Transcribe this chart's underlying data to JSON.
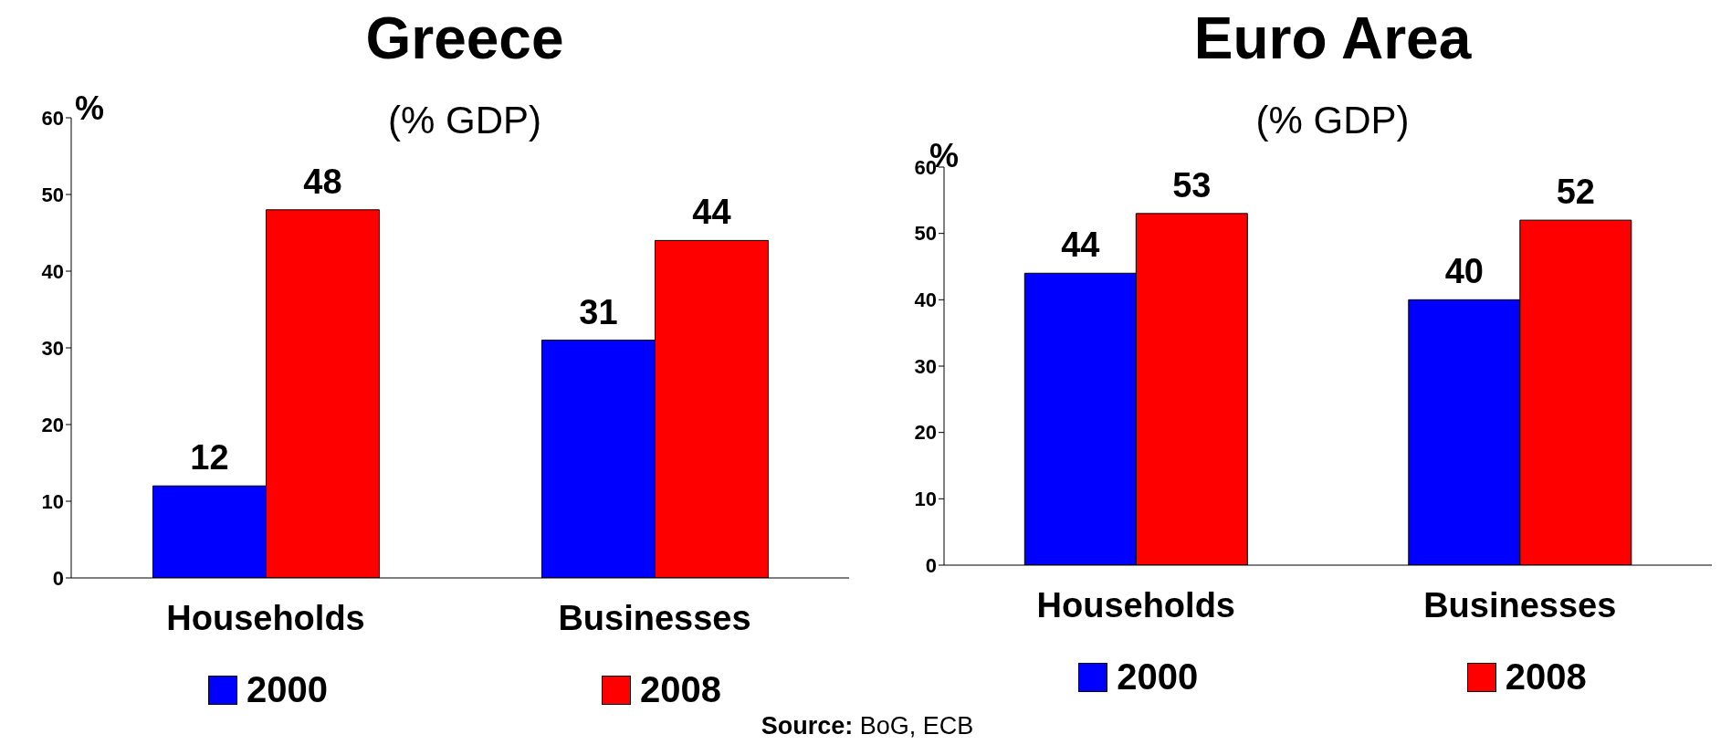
{
  "chart_data": [
    {
      "type": "bar",
      "title": "Greece",
      "subtitle": "(% GDP)",
      "ylabel": "%",
      "categories": [
        "Households",
        "Businesses"
      ],
      "series": [
        {
          "name": "2000",
          "color": "#0000ff",
          "values": [
            12,
            31
          ]
        },
        {
          "name": "2008",
          "color": "#ff0000",
          "values": [
            48,
            44
          ]
        }
      ],
      "ylim": [
        0,
        60
      ],
      "yticks": [
        0,
        10,
        20,
        30,
        40,
        50,
        60
      ],
      "grid": false,
      "legend": "bottom",
      "data_labels": true,
      "annotations": [
        "Source: BoG, ECB"
      ]
    },
    {
      "type": "bar",
      "title": "Euro Area",
      "subtitle": "(% GDP)",
      "ylabel": "%",
      "categories": [
        "Households",
        "Businesses"
      ],
      "series": [
        {
          "name": "2000",
          "color": "#0000ff",
          "values": [
            44,
            40
          ]
        },
        {
          "name": "2008",
          "color": "#ff0000",
          "values": [
            53,
            52
          ]
        }
      ],
      "ylim": [
        0,
        60
      ],
      "yticks": [
        0,
        10,
        20,
        30,
        40,
        50,
        60
      ],
      "grid": false,
      "legend": "bottom",
      "data_labels": true
    }
  ]
}
